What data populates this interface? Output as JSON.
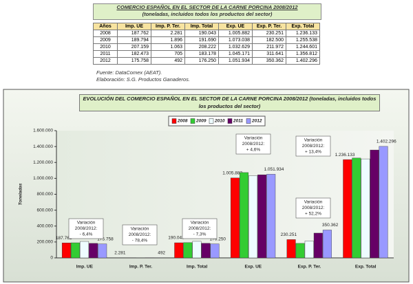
{
  "header": {
    "title": "COMERCIO ESPAÑOL EN EL SECTOR DE LA CARNE PORCINA 2008/2012",
    "subtitle": "(toneladas, incluidos todos los productos del sector)"
  },
  "table": {
    "columns": [
      "Años",
      "Imp. UE",
      "Imp. P. Ter.",
      "Imp. Total",
      "Exp. UE",
      "Exp. P. Ter.",
      "Exp. Total"
    ],
    "rows": [
      [
        "2008",
        "187.762",
        "2.281",
        "190.043",
        "1.005.882",
        "230.251",
        "1.236.133"
      ],
      [
        "2009",
        "189.794",
        "1.896",
        "191.690",
        "1.073.038",
        "182.500",
        "1.255.538"
      ],
      [
        "2010",
        "207.159",
        "1.063",
        "208.222",
        "1.032.629",
        "211.972",
        "1.244.601"
      ],
      [
        "2011",
        "182.473",
        "705",
        "183.178",
        "1.045.171",
        "311.641",
        "1.356.812"
      ],
      [
        "2012",
        "175.758",
        "492",
        "176.250",
        "1.051.934",
        "350.362",
        "1.402.296"
      ]
    ]
  },
  "notes": [
    "Fuente: DataComex (AEAT).",
    "Elaboración: S.G. Productos Ganaderos."
  ],
  "chart_data": {
    "type": "bar",
    "title": "EVOLUCIÓN DEL COMERCIO ESPAÑOL EN EL SECTOR DE LA CARNE PORCINA 2008/2012 (toneladas, incluidos todos los productos del sector)",
    "y_label": "Toneladas",
    "legend": "top",
    "grid": false,
    "categories": [
      "Imp. UE",
      "Imp. P. Ter.",
      "Imp. Total",
      "Exp. UE",
      "Exp. P. Ter.",
      "Exp. Total"
    ],
    "series": [
      {
        "name": "2008",
        "color": "#ff0000",
        "values": [
          187762,
          2281,
          190043,
          1005882,
          230251,
          1236133
        ],
        "value_labels": [
          "187.762",
          "2.281",
          "190.043",
          "1.005.882",
          "230.251",
          "1.236.133"
        ]
      },
      {
        "name": "2009",
        "color": "#33cc33",
        "values": [
          189794,
          1896,
          191690,
          1073038,
          182500,
          1255538
        ]
      },
      {
        "name": "2010",
        "color": "#eefcff",
        "values": [
          207159,
          1063,
          208222,
          1032629,
          211972,
          1244601
        ]
      },
      {
        "name": "2011",
        "color": "#660066",
        "values": [
          182473,
          705,
          183178,
          1045171,
          311641,
          1356812
        ]
      },
      {
        "name": "2012",
        "color": "#9999ff",
        "values": [
          175758,
          492,
          176250,
          1051934,
          350362,
          1402296
        ],
        "value_labels": [
          "175.758",
          "492",
          "176.250",
          "1.051.934",
          "350.362",
          "1.402.296"
        ]
      }
    ],
    "ylim": [
      0,
      1600000
    ],
    "yticks": [
      0,
      {
        "value": 200000,
        "label": "200.000"
      },
      {
        "value": 400000,
        "label": "400.000"
      },
      {
        "value": 600000,
        "label": "600.000"
      },
      {
        "value": 800000,
        "label": "800.000"
      },
      {
        "value": 1000000,
        "label": "1.000.000"
      },
      {
        "value": 1200000,
        "label": "1.200.000"
      },
      {
        "value": 1400000,
        "label": "1.400.000"
      },
      {
        "value": 1600000,
        "label": "1.600.000"
      }
    ],
    "annotations": [
      {
        "lines": [
          "Variación",
          "2008/2012:",
          "- 6,4%"
        ]
      },
      {
        "lines": [
          "Variación",
          "2008/2012:",
          "- 78,4%"
        ]
      },
      {
        "lines": [
          "Variación",
          "2008/2012:",
          "- 7,3%"
        ]
      },
      {
        "lines": [
          "Variación",
          "2008/2012:",
          "+ 4,6%"
        ]
      },
      {
        "lines": [
          "Variación",
          "2008/2012:",
          "+ 52,2%"
        ]
      },
      {
        "lines": [
          "Variación",
          "2008/2012:",
          "+ 13,4%"
        ]
      }
    ]
  }
}
